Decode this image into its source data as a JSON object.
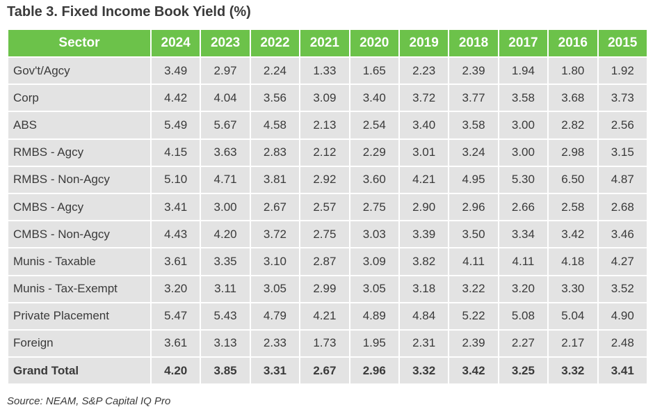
{
  "title": "Table 3. Fixed Income Book Yield (%)",
  "header": {
    "sector": "Sector",
    "years": [
      "2024",
      "2023",
      "2022",
      "2021",
      "2020",
      "2019",
      "2018",
      "2017",
      "2016",
      "2015"
    ]
  },
  "rows": [
    {
      "sector": "Gov't/Agcy",
      "values": [
        "3.49",
        "2.97",
        "2.24",
        "1.33",
        "1.65",
        "2.23",
        "2.39",
        "1.94",
        "1.80",
        "1.92"
      ]
    },
    {
      "sector": "Corp",
      "values": [
        "4.42",
        "4.04",
        "3.56",
        "3.09",
        "3.40",
        "3.72",
        "3.77",
        "3.58",
        "3.68",
        "3.73"
      ]
    },
    {
      "sector": "ABS",
      "values": [
        "5.49",
        "5.67",
        "4.58",
        "2.13",
        "2.54",
        "3.40",
        "3.58",
        "3.00",
        "2.82",
        "2.56"
      ]
    },
    {
      "sector": "RMBS - Agcy",
      "values": [
        "4.15",
        "3.63",
        "2.83",
        "2.12",
        "2.29",
        "3.01",
        "3.24",
        "3.00",
        "2.98",
        "3.15"
      ]
    },
    {
      "sector": "RMBS - Non-Agcy",
      "values": [
        "5.10",
        "4.71",
        "3.81",
        "2.92",
        "3.60",
        "4.21",
        "4.95",
        "5.30",
        "6.50",
        "4.87"
      ]
    },
    {
      "sector": "CMBS - Agcy",
      "values": [
        "3.41",
        "3.00",
        "2.67",
        "2.57",
        "2.75",
        "2.90",
        "2.96",
        "2.66",
        "2.58",
        "2.68"
      ]
    },
    {
      "sector": "CMBS - Non-Agcy",
      "values": [
        "4.43",
        "4.20",
        "3.72",
        "2.75",
        "3.03",
        "3.39",
        "3.50",
        "3.34",
        "3.42",
        "3.46"
      ]
    },
    {
      "sector": "Munis - Taxable",
      "values": [
        "3.61",
        "3.35",
        "3.10",
        "2.87",
        "3.09",
        "3.82",
        "4.11",
        "4.11",
        "4.18",
        "4.27"
      ]
    },
    {
      "sector": "Munis - Tax-Exempt",
      "values": [
        "3.20",
        "3.11",
        "3.05",
        "2.99",
        "3.05",
        "3.18",
        "3.22",
        "3.20",
        "3.30",
        "3.52"
      ]
    },
    {
      "sector": "Private Placement",
      "values": [
        "5.47",
        "5.43",
        "4.79",
        "4.21",
        "4.89",
        "4.84",
        "5.22",
        "5.08",
        "5.04",
        "4.90"
      ]
    },
    {
      "sector": "Foreign",
      "values": [
        "3.61",
        "3.13",
        "2.33",
        "1.73",
        "1.95",
        "2.31",
        "2.39",
        "2.27",
        "2.17",
        "2.48"
      ]
    }
  ],
  "total": {
    "sector": "Grand Total",
    "values": [
      "4.20",
      "3.85",
      "3.31",
      "2.67",
      "2.96",
      "3.32",
      "3.42",
      "3.25",
      "3.32",
      "3.41"
    ]
  },
  "source": "Source: NEAM, S&P Capital IQ Pro",
  "colors": {
    "header_bg": "#6cc24a",
    "header_text": "#ffffff",
    "cell_bg": "#e3e3e3",
    "text": "#3a3a3a"
  }
}
